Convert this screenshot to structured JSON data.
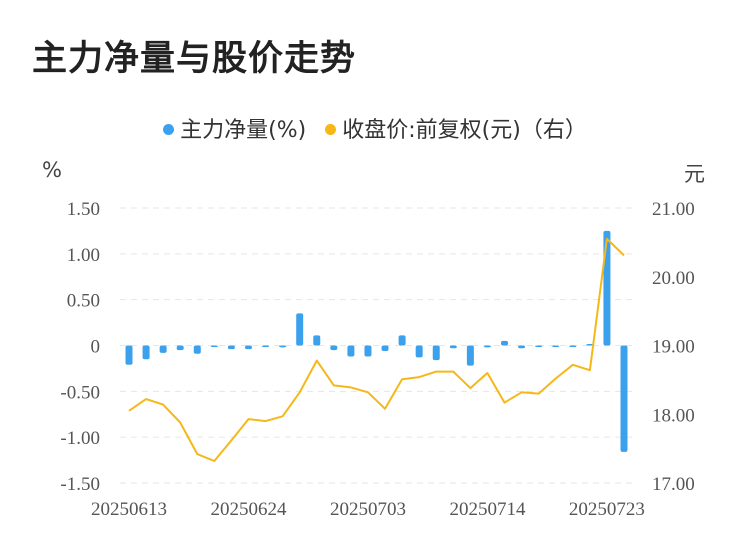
{
  "title": "主力净量与股价走势",
  "legend": [
    {
      "label": "主力净量(%)",
      "color": "#3ba1ec"
    },
    {
      "label": "收盘价:前复权(元)（右）",
      "color": "#f5b818"
    }
  ],
  "units": {
    "left": "%",
    "right": "元"
  },
  "chart_data": {
    "type": "bar+line",
    "title": "主力净量与股价走势",
    "x_tick_labels": [
      "20250613",
      "20250624",
      "20250703",
      "20250714",
      "20250723"
    ],
    "x_tick_indices": [
      0,
      7,
      14,
      21,
      28
    ],
    "left_axis": {
      "ticks": [
        "1.50",
        "1.00",
        "0.50",
        "0",
        "-0.50",
        "-1.00",
        "-1.50"
      ],
      "range": [
        -1.5,
        1.5
      ]
    },
    "right_axis": {
      "ticks": [
        "21.00",
        "20.00",
        "19.00",
        "18.00",
        "17.00"
      ],
      "range": [
        17.0,
        21.0
      ]
    },
    "grid": true,
    "legend_position": "top-center",
    "series": [
      {
        "name": "主力净量(%)",
        "type": "bar",
        "axis": "left",
        "color": "#3ba1ec",
        "values": [
          -0.21,
          -0.15,
          -0.08,
          -0.05,
          -0.09,
          -0.01,
          -0.04,
          -0.04,
          -0.01,
          -0.02,
          0.35,
          0.11,
          -0.05,
          -0.12,
          -0.12,
          -0.06,
          0.11,
          -0.13,
          -0.16,
          -0.03,
          -0.22,
          -0.02,
          0.05,
          -0.03,
          -0.01,
          -0.01,
          -0.01,
          0.0,
          1.25,
          -1.16
        ]
      },
      {
        "name": "收盘价:前复权(元)（右）",
        "type": "line",
        "axis": "right",
        "color": "#f5b818",
        "values": [
          18.05,
          18.22,
          18.14,
          17.88,
          17.42,
          17.32,
          17.62,
          17.93,
          17.9,
          17.97,
          18.32,
          18.78,
          18.42,
          18.39,
          18.32,
          18.08,
          18.51,
          18.54,
          18.62,
          18.62,
          18.38,
          18.6,
          18.17,
          18.32,
          18.3,
          18.52,
          18.72,
          18.64,
          20.55,
          20.31
        ]
      }
    ]
  }
}
